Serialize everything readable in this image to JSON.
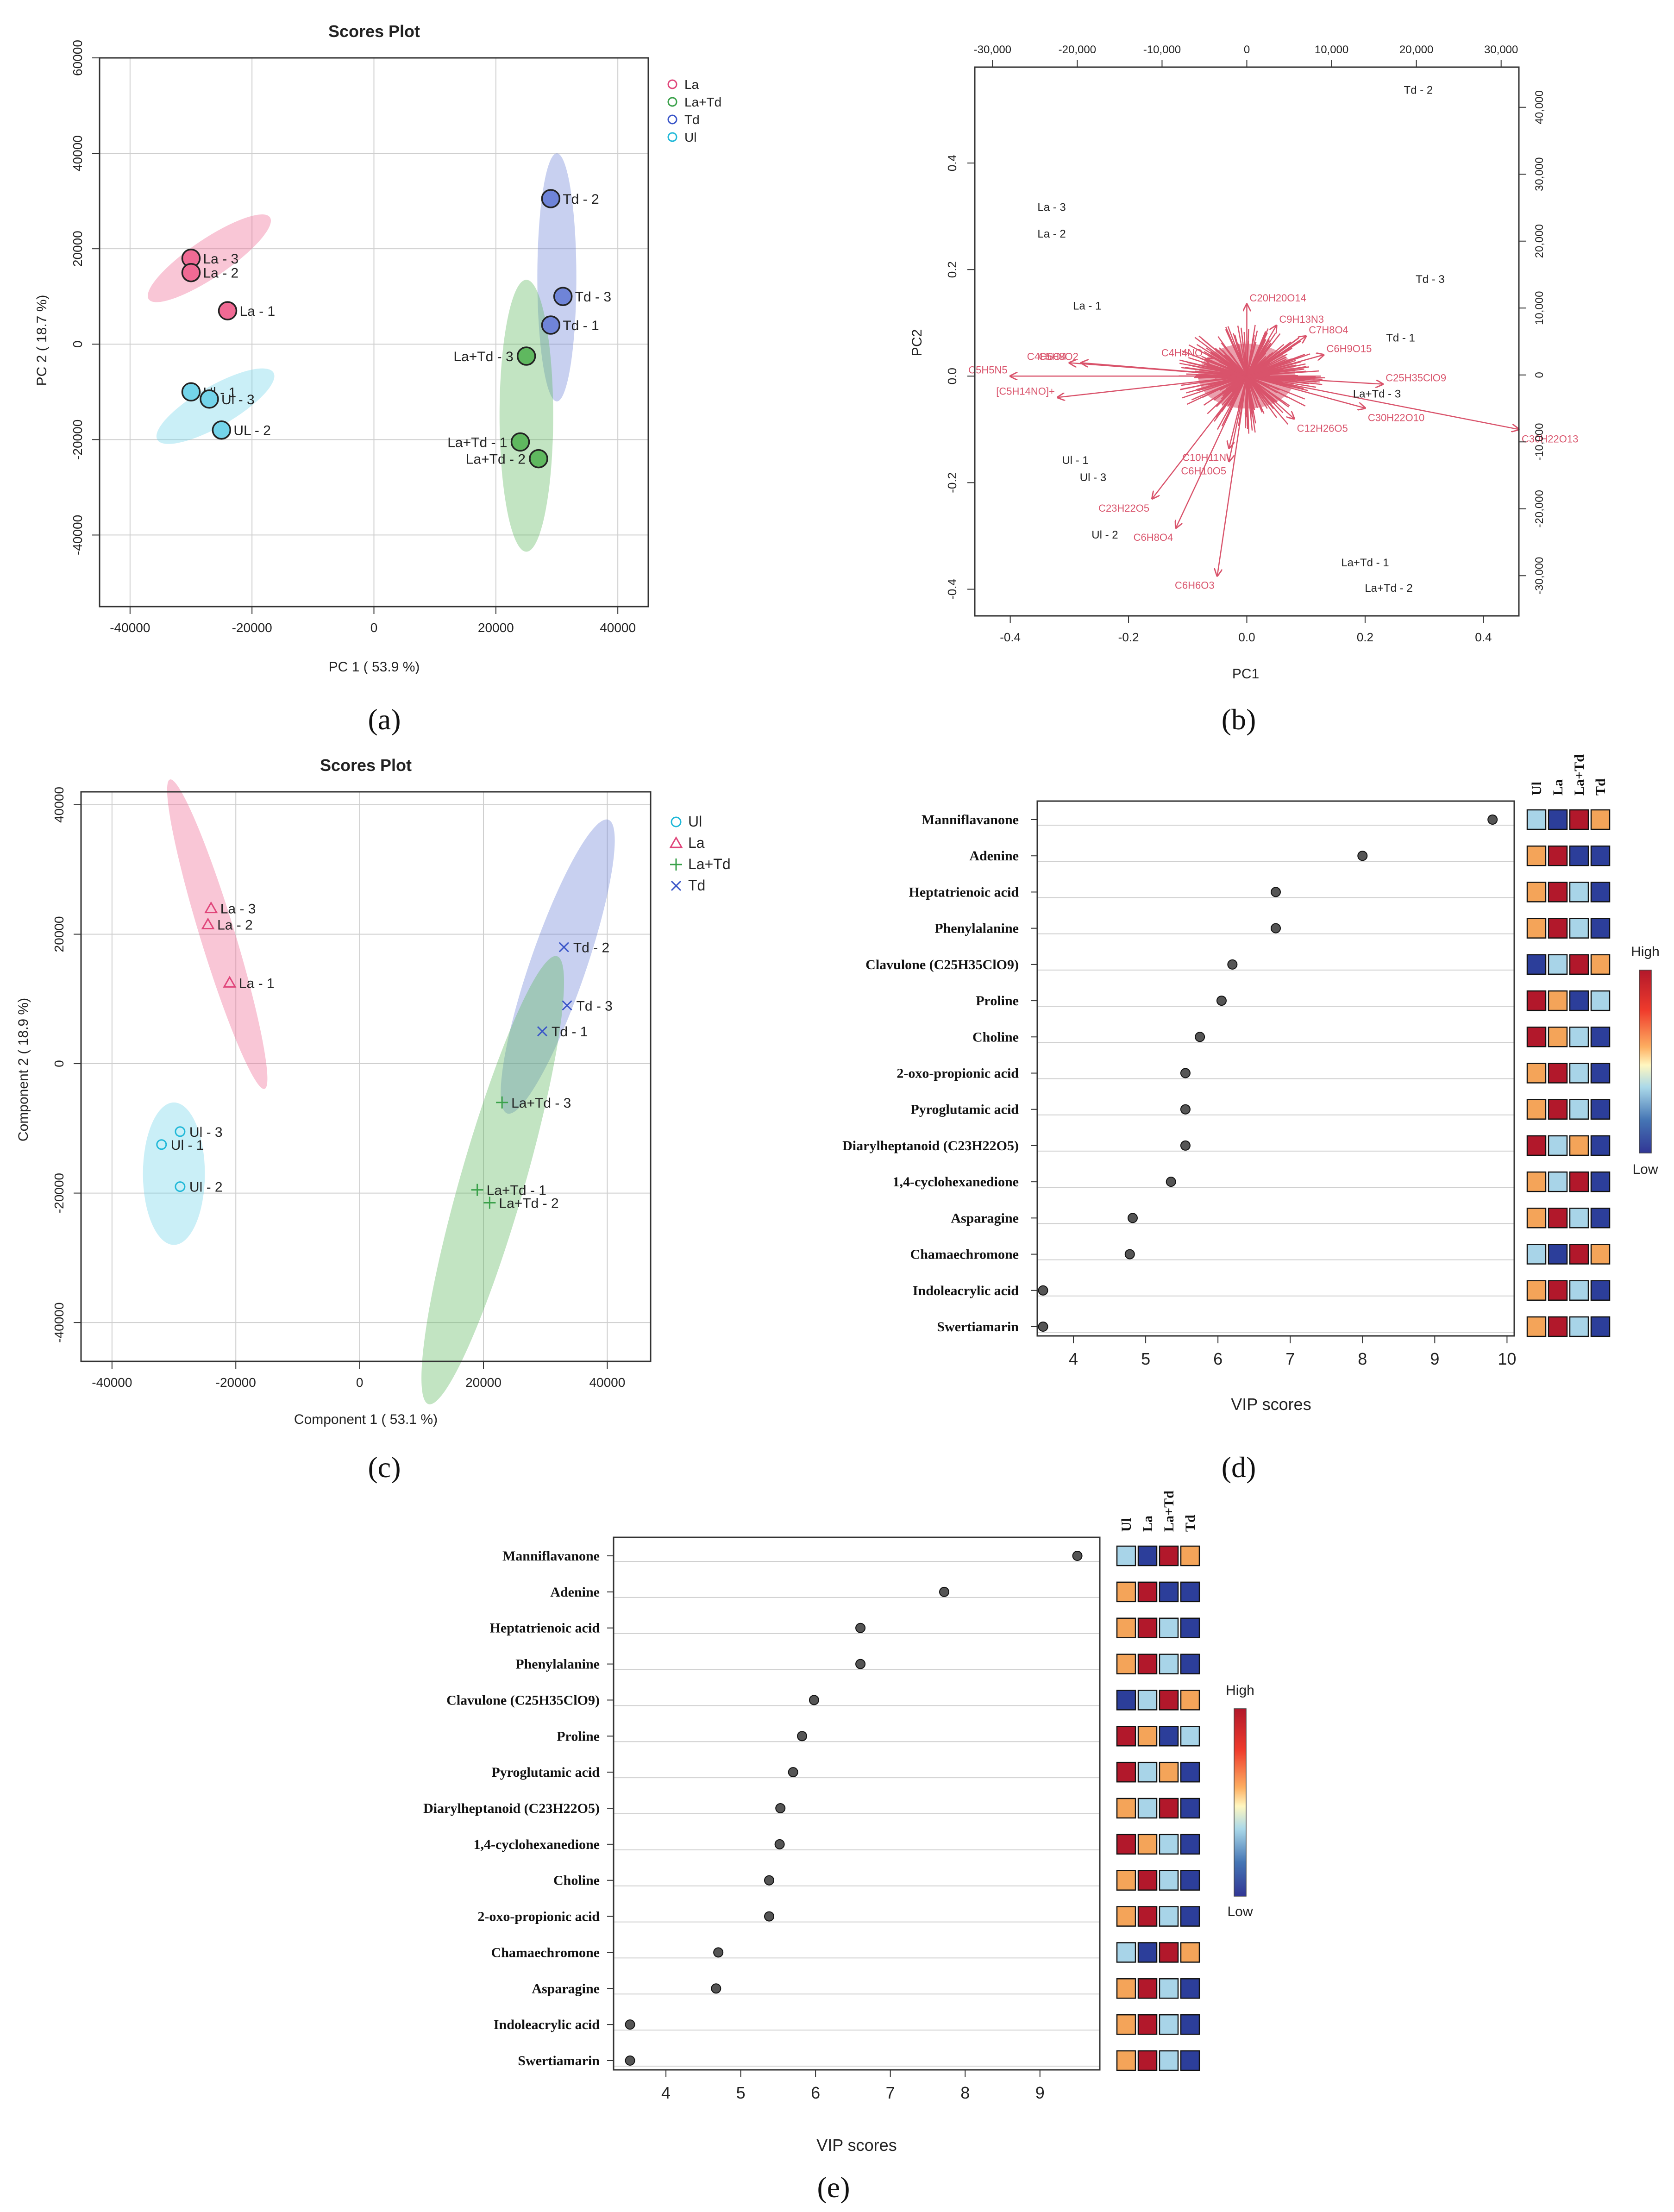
{
  "colors": {
    "La": "#e0457a",
    "LaTd": "#3aa14a",
    "Td": "#3a55c8",
    "Ul": "#20b8d8",
    "La_fill": "#f06a94",
    "LaTd_fill": "#5fb85f",
    "Td_fill": "#6f84d8",
    "Ul_fill": "#74d4ea",
    "red": "#c8102e",
    "arrow": "#d9536b",
    "grid": "#cfcfcf",
    "heat": {
      "H": "#b2182b",
      "O": "#f4a459",
      "L": "#a8d4e8",
      "B": "#2c3e9a"
    }
  },
  "panel_labels": [
    "(a)",
    "(b)",
    "(c)",
    "(d)",
    "(e)"
  ],
  "chart_data": [
    {
      "id": "a",
      "type": "scatter",
      "title": "Scores Plot",
      "xlabel": "PC 1 ( 53.9 %)",
      "ylabel": "PC 2 ( 18.7 %)",
      "xlim": [
        -45000,
        45000
      ],
      "ylim": [
        -55000,
        60000
      ],
      "xticks": [
        -40000,
        -20000,
        0,
        20000,
        40000
      ],
      "xtick_labels": [
        "-40000",
        "-20000",
        "0",
        "20000",
        "40000"
      ],
      "yticks": [
        -40000,
        -20000,
        0,
        20000,
        40000,
        60000
      ],
      "ytick_labels": [
        "-40000",
        "-20000",
        "0",
        "20000",
        "40000",
        "60000"
      ],
      "legend": [
        {
          "label": "La",
          "group": "La"
        },
        {
          "label": "La+Td",
          "group": "LaTd"
        },
        {
          "label": "Td",
          "group": "Td"
        },
        {
          "label": "Ul",
          "group": "Ul"
        }
      ],
      "ellipses": [
        {
          "group": "La",
          "cx": -27000,
          "cy": 18000,
          "rx": 12000,
          "ry": 4000,
          "angle": -34
        },
        {
          "group": "Ul",
          "cx": -26000,
          "cy": -13000,
          "rx": 11000,
          "ry": 4200,
          "angle": -30
        },
        {
          "group": "Td",
          "cx": 30000,
          "cy": 14000,
          "rx": 3200,
          "ry": 26000,
          "angle": 0
        },
        {
          "group": "LaTd",
          "cx": 25000,
          "cy": -15000,
          "rx": 4400,
          "ry": 28500,
          "angle": 0
        }
      ],
      "points": [
        {
          "label": "La - 3",
          "group": "La",
          "x": -30000,
          "y": 18000
        },
        {
          "label": "La - 2",
          "group": "La",
          "x": -30000,
          "y": 15000
        },
        {
          "label": "La - 1",
          "group": "La",
          "x": -24000,
          "y": 7000
        },
        {
          "label": "Ul - 1",
          "group": "Ul",
          "x": -30000,
          "y": -10000
        },
        {
          "label": "Ul - 3",
          "group": "Ul",
          "x": -27000,
          "y": -11500
        },
        {
          "label": "UL - 2",
          "group": "Ul",
          "x": -25000,
          "y": -18000
        },
        {
          "label": "Td - 2",
          "group": "Td",
          "x": 29000,
          "y": 30500
        },
        {
          "label": "Td - 3",
          "group": "Td",
          "x": 31000,
          "y": 10000
        },
        {
          "label": "Td - 1",
          "group": "Td",
          "x": 29000,
          "y": 4000
        },
        {
          "label": "La+Td - 3",
          "group": "LaTd",
          "x": 25000,
          "y": -2500,
          "anchor": "left"
        },
        {
          "label": "La+Td - 1",
          "group": "LaTd",
          "x": 24000,
          "y": -20500,
          "anchor": "left"
        },
        {
          "label": "La+Td - 2",
          "group": "LaTd",
          "x": 27000,
          "y": -24000,
          "anchor": "left"
        }
      ]
    },
    {
      "id": "b",
      "type": "biplot",
      "xlabel": "PC1",
      "ylabel": "PC2",
      "xlim": [
        -0.46,
        0.46
      ],
      "ylim": [
        -0.45,
        0.58
      ],
      "xticks": [
        -0.4,
        -0.2,
        0.0,
        0.2,
        0.4
      ],
      "xtick_labels": [
        "-0.4",
        "-0.2",
        "0.0",
        "0.2",
        "0.4"
      ],
      "yticks": [
        -0.4,
        -0.2,
        0.0,
        0.2,
        0.4
      ],
      "ytick_labels": [
        "-0.4",
        "-0.2",
        "0.0",
        "0.2",
        "0.4"
      ],
      "top_ticks": [
        -30000,
        -20000,
        -10000,
        0,
        10000,
        20000,
        30000
      ],
      "top_tick_labels": [
        "-30,000",
        "-20,000",
        "-10,000",
        "0",
        "10,000",
        "20,000",
        "30,000"
      ],
      "right_ticks": [
        -30000,
        -20000,
        -10000,
        0,
        10000,
        20000,
        30000,
        40000
      ],
      "right_tick_labels": [
        "-30,000",
        "-20,000",
        "-10,000",
        "0",
        "10,000",
        "20,000",
        "30,000",
        "40,000"
      ],
      "right_range": [
        -36000,
        46000
      ],
      "samples": [
        {
          "label": "Td - 2",
          "x": 0.29,
          "y": 0.53
        },
        {
          "label": "La - 3",
          "x": -0.33,
          "y": 0.31
        },
        {
          "label": "La - 2",
          "x": -0.33,
          "y": 0.26
        },
        {
          "label": "La - 1",
          "x": -0.27,
          "y": 0.125
        },
        {
          "label": "Td - 3",
          "x": 0.31,
          "y": 0.175
        },
        {
          "label": "Td - 1",
          "x": 0.26,
          "y": 0.065
        },
        {
          "label": "La+Td - 3",
          "x": 0.22,
          "y": -0.04
        },
        {
          "label": "Ul - 1",
          "x": -0.29,
          "y": -0.165
        },
        {
          "label": "Ul - 3",
          "x": -0.26,
          "y": -0.197
        },
        {
          "label": "Ul - 2",
          "x": -0.24,
          "y": -0.305
        },
        {
          "label": "La+Td - 1",
          "x": 0.2,
          "y": -0.357
        },
        {
          "label": "La+Td - 2",
          "x": 0.24,
          "y": -0.405
        }
      ],
      "loadings": [
        {
          "label": "C20H20O14",
          "x": 0.0,
          "y": 0.135
        },
        {
          "label": "C4H4NO",
          "x": -0.07,
          "y": 0.032
        },
        {
          "label": "C5H5N5",
          "x": -0.4,
          "y": 0.0
        },
        {
          "label": "[C5H14NO]+",
          "x": -0.32,
          "y": -0.04
        },
        {
          "label": "C4H6O4",
          "x": -0.3,
          "y": 0.025
        },
        {
          "label": "C5H8O2",
          "x": -0.28,
          "y": 0.025
        },
        {
          "label": "C25H35ClO9",
          "x": 0.23,
          "y": -0.015
        },
        {
          "label": "C30H22O10",
          "x": 0.2,
          "y": -0.06
        },
        {
          "label": "C30H22O13",
          "x": 0.46,
          "y": -0.1
        },
        {
          "label": "C10H11N",
          "x": -0.03,
          "y": -0.135
        },
        {
          "label": "C6H10O5",
          "x": -0.03,
          "y": -0.16
        },
        {
          "label": "C23H22O5",
          "x": -0.16,
          "y": -0.23
        },
        {
          "label": "C6H8O4",
          "x": -0.12,
          "y": -0.285
        },
        {
          "label": "C6H6O3",
          "x": -0.05,
          "y": -0.375
        },
        {
          "label": "C12H26O5",
          "x": 0.08,
          "y": -0.08
        },
        {
          "label": "C9H13N3",
          "x": 0.05,
          "y": 0.095
        },
        {
          "label": "C7H8O4",
          "x": 0.1,
          "y": 0.075
        },
        {
          "label": "C6H9O15",
          "x": 0.13,
          "y": 0.04
        }
      ]
    },
    {
      "id": "c",
      "type": "scatter",
      "title": "Scores Plot",
      "xlabel": "Component 1 ( 53.1 %)",
      "ylabel": "Component 2 ( 18.9 %)",
      "xlim": [
        -45000,
        47000
      ],
      "ylim": [
        -46000,
        42000
      ],
      "xticks": [
        -40000,
        -20000,
        0,
        20000,
        40000
      ],
      "xtick_labels": [
        "-40000",
        "-20000",
        "0",
        "20000",
        "40000"
      ],
      "yticks": [
        -40000,
        -20000,
        0,
        20000,
        40000
      ],
      "ytick_labels": [
        "-40000",
        "-20000",
        "0",
        "20000",
        "40000"
      ],
      "legend": [
        {
          "label": "Ul",
          "group": "Ul",
          "marker": "circle"
        },
        {
          "label": "La",
          "group": "La",
          "marker": "triangle"
        },
        {
          "label": "La+Td",
          "group": "LaTd",
          "marker": "plus"
        },
        {
          "label": "Td",
          "group": "Td",
          "marker": "cross"
        }
      ],
      "ellipses": [
        {
          "group": "Ul",
          "cx": -30000,
          "cy": -17000,
          "rx": 5000,
          "ry": 11000,
          "angle": 0
        },
        {
          "group": "La",
          "cx": -23000,
          "cy": 20000,
          "rx": 2800,
          "ry": 25000,
          "angle": -17
        },
        {
          "group": "Td",
          "cx": 32000,
          "cy": 15000,
          "rx": 4500,
          "ry": 24000,
          "angle": 19
        },
        {
          "group": "LaTd",
          "cx": 21500,
          "cy": -18000,
          "rx": 5200,
          "ry": 36000,
          "angle": 16
        }
      ],
      "points": [
        {
          "label": "La - 3",
          "group": "La",
          "marker": "triangle",
          "x": -24000,
          "y": 24000
        },
        {
          "label": "La - 2",
          "group": "La",
          "marker": "triangle",
          "x": -24500,
          "y": 21500
        },
        {
          "label": "La - 1",
          "group": "La",
          "marker": "triangle",
          "x": -21000,
          "y": 12500
        },
        {
          "label": "Ul - 3",
          "group": "Ul",
          "marker": "circle",
          "x": -29000,
          "y": -10500
        },
        {
          "label": "Ul - 1",
          "group": "Ul",
          "marker": "circle",
          "x": -32000,
          "y": -12500
        },
        {
          "label": "Ul - 2",
          "group": "Ul",
          "marker": "circle",
          "x": -29000,
          "y": -19000
        },
        {
          "label": "Td - 2",
          "group": "Td",
          "marker": "cross",
          "x": 33000,
          "y": 18000
        },
        {
          "label": "Td - 3",
          "group": "Td",
          "marker": "cross",
          "x": 33500,
          "y": 9000
        },
        {
          "label": "Td - 1",
          "group": "Td",
          "marker": "cross",
          "x": 29500,
          "y": 5000
        },
        {
          "label": "La+Td - 3",
          "group": "LaTd",
          "marker": "plus",
          "x": 23000,
          "y": -6000
        },
        {
          "label": "La+Td - 1",
          "group": "LaTd",
          "marker": "plus",
          "x": 19000,
          "y": -19500
        },
        {
          "label": "La+Td - 2",
          "group": "LaTd",
          "marker": "plus",
          "x": 21000,
          "y": -21500
        }
      ]
    },
    {
      "id": "d",
      "type": "vip_dot",
      "xlabel": "VIP scores",
      "xlim": [
        3.5,
        10.1
      ],
      "xticks": [
        4,
        5,
        6,
        7,
        8,
        9,
        10
      ],
      "xtick_labels": [
        "4",
        "5",
        "6",
        "7",
        "8",
        "9",
        "10"
      ],
      "heat_columns": [
        "Ul",
        "La",
        "La+Td",
        "Td"
      ],
      "legend_high": "High",
      "legend_low": "Low",
      "features": [
        {
          "name": "Manniflavanone",
          "vip": 9.8,
          "heat": [
            "L",
            "B",
            "H",
            "O"
          ]
        },
        {
          "name": "Adenine",
          "vip": 8.0,
          "heat": [
            "O",
            "H",
            "B",
            "B"
          ]
        },
        {
          "name": "Heptatrienoic acid",
          "vip": 6.8,
          "heat": [
            "O",
            "H",
            "L",
            "B"
          ]
        },
        {
          "name": "Phenylalanine",
          "vip": 6.8,
          "heat": [
            "O",
            "H",
            "L",
            "B"
          ]
        },
        {
          "name": "Clavulone (C25H35ClO9)",
          "vip": 6.2,
          "heat": [
            "B",
            "L",
            "H",
            "O"
          ]
        },
        {
          "name": "Proline",
          "vip": 6.05,
          "heat": [
            "H",
            "O",
            "B",
            "L"
          ]
        },
        {
          "name": "Choline",
          "vip": 5.75,
          "heat": [
            "H",
            "O",
            "L",
            "B"
          ]
        },
        {
          "name": "2-oxo-propionic acid",
          "vip": 5.55,
          "heat": [
            "O",
            "H",
            "L",
            "B"
          ]
        },
        {
          "name": "Pyroglutamic acid",
          "vip": 5.55,
          "heat": [
            "O",
            "H",
            "L",
            "B"
          ]
        },
        {
          "name": "Diarylheptanoid (C23H22O5)",
          "vip": 5.55,
          "heat": [
            "H",
            "L",
            "O",
            "B"
          ]
        },
        {
          "name": "1,4-cyclohexanedione",
          "vip": 5.35,
          "heat": [
            "O",
            "L",
            "H",
            "B"
          ]
        },
        {
          "name": "Asparagine",
          "vip": 4.82,
          "heat": [
            "O",
            "H",
            "L",
            "B"
          ]
        },
        {
          "name": "Chamaechromone",
          "vip": 4.78,
          "heat": [
            "L",
            "B",
            "H",
            "O"
          ]
        },
        {
          "name": "Indoleacrylic acid",
          "vip": 3.58,
          "heat": [
            "O",
            "H",
            "L",
            "B"
          ]
        },
        {
          "name": "Swertiamarin",
          "vip": 3.58,
          "heat": [
            "O",
            "H",
            "L",
            "B"
          ]
        }
      ]
    },
    {
      "id": "e",
      "type": "vip_dot",
      "xlabel": "VIP scores",
      "xlim": [
        3.3,
        9.8
      ],
      "xticks": [
        4,
        5,
        6,
        7,
        8,
        9
      ],
      "xtick_labels": [
        "4",
        "5",
        "6",
        "7",
        "8",
        "9"
      ],
      "heat_columns": [
        "Ul",
        "La",
        "La+Td",
        "Td"
      ],
      "legend_high": "High",
      "legend_low": "Low",
      "features": [
        {
          "name": "Manniflavanone",
          "vip": 9.5,
          "heat": [
            "L",
            "B",
            "H",
            "O"
          ]
        },
        {
          "name": "Adenine",
          "vip": 7.72,
          "heat": [
            "O",
            "H",
            "B",
            "B"
          ]
        },
        {
          "name": "Heptatrienoic acid",
          "vip": 6.6,
          "heat": [
            "O",
            "H",
            "L",
            "B"
          ]
        },
        {
          "name": "Phenylalanine",
          "vip": 6.6,
          "heat": [
            "O",
            "H",
            "L",
            "B"
          ]
        },
        {
          "name": "Clavulone (C25H35ClO9)",
          "vip": 5.98,
          "heat": [
            "B",
            "L",
            "H",
            "O"
          ]
        },
        {
          "name": "Proline",
          "vip": 5.82,
          "heat": [
            "H",
            "O",
            "B",
            "L"
          ]
        },
        {
          "name": "Pyroglutamic acid",
          "vip": 5.7,
          "heat": [
            "H",
            "L",
            "O",
            "B"
          ]
        },
        {
          "name": "Diarylheptanoid (C23H22O5)",
          "vip": 5.53,
          "heat": [
            "O",
            "L",
            "H",
            "B"
          ]
        },
        {
          "name": "1,4-cyclohexanedione",
          "vip": 5.52,
          "heat": [
            "H",
            "O",
            "L",
            "B"
          ]
        },
        {
          "name": "Choline",
          "vip": 5.38,
          "heat": [
            "O",
            "H",
            "L",
            "B"
          ]
        },
        {
          "name": "2-oxo-propionic acid",
          "vip": 5.38,
          "heat": [
            "O",
            "H",
            "L",
            "B"
          ]
        },
        {
          "name": "Chamaechromone",
          "vip": 4.7,
          "heat": [
            "L",
            "B",
            "H",
            "O"
          ]
        },
        {
          "name": "Asparagine",
          "vip": 4.67,
          "heat": [
            "O",
            "H",
            "L",
            "B"
          ]
        },
        {
          "name": "Indoleacrylic acid",
          "vip": 3.52,
          "heat": [
            "O",
            "H",
            "L",
            "B"
          ]
        },
        {
          "name": "Swertiamarin",
          "vip": 3.52,
          "heat": [
            "O",
            "H",
            "L",
            "B"
          ]
        }
      ]
    }
  ]
}
